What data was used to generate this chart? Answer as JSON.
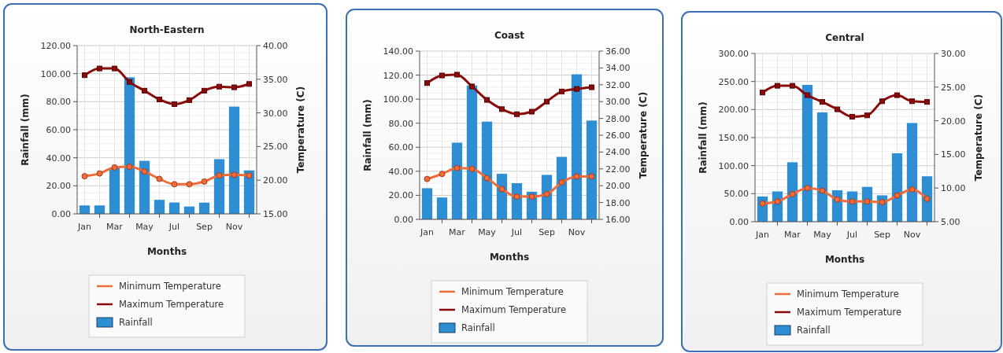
{
  "chart_data": [
    {
      "type": "bar",
      "title": "North-Eastern",
      "xlabel": "Months",
      "ylabel": "Rainfall (mm)",
      "y2label": "Temperature (C)",
      "categories": [
        "Jan",
        null,
        "Mar",
        null,
        "May",
        null,
        "Jul",
        null,
        "Sep",
        null,
        "Nov",
        null
      ],
      "ylim": [
        0,
        120
      ],
      "yticks": [
        {
          "value": 0,
          "label": "0.00"
        },
        {
          "value": 20,
          "label": "20.00"
        },
        {
          "value": 40,
          "label": "40.00"
        },
        {
          "value": 60,
          "label": "60.00"
        },
        {
          "value": 80,
          "label": "80.00"
        },
        {
          "value": 100,
          "label": "100.00"
        },
        {
          "value": 120,
          "label": "120.00"
        }
      ],
      "y2lim": [
        15,
        40
      ],
      "y2ticks": [
        {
          "value": 15,
          "label": "15.00"
        },
        {
          "value": 20,
          "label": "20.00"
        },
        {
          "value": 25,
          "label": "25.00"
        },
        {
          "value": 30,
          "label": "30.00"
        },
        {
          "value": 35,
          "label": "35.00"
        },
        {
          "value": 40,
          "label": "40.00"
        }
      ],
      "grid": true,
      "legend": "bottom",
      "series": [
        {
          "name": "Minimum Temperature",
          "type": "line",
          "axis": "y2",
          "marker": "circle",
          "color": "#f26b3a",
          "values": [
            20.6,
            21.0,
            21.9,
            22.0,
            21.3,
            20.2,
            19.4,
            19.4,
            19.8,
            20.7,
            20.8,
            20.7
          ]
        },
        {
          "name": "Maximum Temperature",
          "type": "line",
          "axis": "y2",
          "marker": "square",
          "color": "#8b0a0a",
          "values": [
            35.6,
            36.6,
            36.6,
            34.6,
            33.3,
            32.0,
            31.3,
            31.9,
            33.3,
            33.9,
            33.8,
            34.3
          ]
        },
        {
          "name": "Rainfall",
          "color": "#2d8ed4",
          "values": [
            6,
            6,
            33,
            97.4,
            37.8,
            10,
            8.1,
            5.2,
            8,
            39,
            76.5,
            31
          ]
        }
      ]
    },
    {
      "type": "bar",
      "title": "Coast",
      "xlabel": "Months",
      "ylabel": "Rainfall (mm)",
      "y2label": "Temperature (C)",
      "categories": [
        "Jan",
        null,
        "Mar",
        null,
        "May",
        null,
        "Jul",
        null,
        "Sep",
        null,
        "Nov",
        null
      ],
      "ylim": [
        0,
        140
      ],
      "yticks": [
        {
          "value": 0,
          "label": "0.00"
        },
        {
          "value": 20,
          "label": "20.00"
        },
        {
          "value": 40,
          "label": "40.00"
        },
        {
          "value": 60,
          "label": "60.00"
        },
        {
          "value": 80,
          "label": "80.00"
        },
        {
          "value": 100,
          "label": "100.00"
        },
        {
          "value": 120,
          "label": "120.00"
        },
        {
          "value": 140,
          "label": "140.00"
        }
      ],
      "y2lim": [
        16,
        36
      ],
      "y2ticks": [
        {
          "value": 16,
          "label": "16.00"
        },
        {
          "value": 18,
          "label": "18.00"
        },
        {
          "value": 20,
          "label": "20.00"
        },
        {
          "value": 22,
          "label": "22.00"
        },
        {
          "value": 24,
          "label": "24.00"
        },
        {
          "value": 26,
          "label": "26.00"
        },
        {
          "value": 28,
          "label": "28.00"
        },
        {
          "value": 30,
          "label": "30.00"
        },
        {
          "value": 32,
          "label": "32.00"
        },
        {
          "value": 34,
          "label": "34.00"
        },
        {
          "value": 36,
          "label": "36.00"
        }
      ],
      "grid": true,
      "legend": "bottom",
      "series": [
        {
          "name": "Minimum Temperature",
          "type": "line",
          "axis": "y2",
          "marker": "circle",
          "color": "#f26b3a",
          "values": [
            20.8,
            21.4,
            22.1,
            22.0,
            20.9,
            19.6,
            18.7,
            18.7,
            19.0,
            20.4,
            21.1,
            21.1
          ]
        },
        {
          "name": "Maximum Temperature",
          "type": "line",
          "axis": "y2",
          "marker": "square",
          "color": "#8b0a0a",
          "values": [
            32.2,
            33.1,
            33.2,
            31.8,
            30.2,
            29.1,
            28.5,
            28.8,
            30.0,
            31.2,
            31.5,
            31.7
          ]
        },
        {
          "name": "Rainfall",
          "color": "#2d8ed4",
          "values": [
            25.9,
            18.2,
            63.8,
            111.4,
            81.3,
            37.9,
            30.1,
            23,
            37,
            52,
            120.7,
            82.2
          ]
        }
      ]
    },
    {
      "type": "bar",
      "title": "Central",
      "xlabel": "Months",
      "ylabel": "Rainfall (mm)",
      "y2label": "Temperature (C)",
      "categories": [
        "Jan",
        null,
        "Mar",
        null,
        "May",
        null,
        "Jul",
        null,
        "Sep",
        null,
        "Nov",
        null
      ],
      "ylim": [
        0,
        300
      ],
      "yticks": [
        {
          "value": 0,
          "label": "0.00"
        },
        {
          "value": 50,
          "label": "50.00"
        },
        {
          "value": 100,
          "label": "100.00"
        },
        {
          "value": 150,
          "label": "150.00"
        },
        {
          "value": 200,
          "label": "200.00"
        },
        {
          "value": 250,
          "label": "250.00"
        },
        {
          "value": 300,
          "label": "300.00"
        }
      ],
      "y2lim": [
        5,
        30
      ],
      "y2ticks": [
        {
          "value": 5,
          "label": "5.00"
        },
        {
          "value": 10,
          "label": "10.00"
        },
        {
          "value": 15,
          "label": "15.00"
        },
        {
          "value": 20,
          "label": "20.00"
        },
        {
          "value": 25,
          "label": "25.00"
        },
        {
          "value": 30,
          "label": "30.00"
        }
      ],
      "grid": true,
      "legend": "bottom",
      "series": [
        {
          "name": "Minimum Temperature",
          "type": "line",
          "axis": "y2",
          "marker": "circle",
          "color": "#f26b3a",
          "values": [
            7.7,
            8.0,
            9.1,
            10.0,
            9.6,
            8.3,
            8.0,
            8.0,
            7.9,
            8.9,
            9.8,
            8.4
          ]
        },
        {
          "name": "Maximum Temperature",
          "type": "line",
          "axis": "y2",
          "marker": "square",
          "color": "#8b0a0a",
          "values": [
            24.2,
            25.2,
            25.2,
            23.8,
            22.8,
            21.7,
            20.6,
            20.8,
            22.9,
            23.8,
            22.9,
            22.8
          ]
        },
        {
          "name": "Rainfall",
          "color": "#2d8ed4",
          "values": [
            45,
            54,
            106,
            244,
            195,
            56,
            54,
            62,
            47,
            122,
            176,
            81
          ]
        }
      ]
    }
  ]
}
